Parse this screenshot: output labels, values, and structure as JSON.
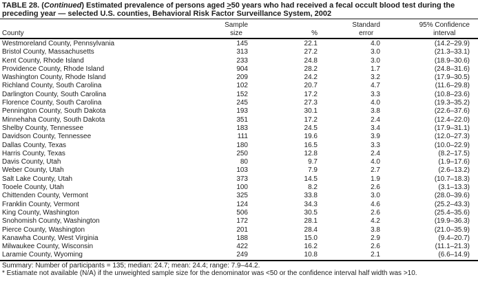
{
  "colors": {
    "background": "#ffffff",
    "text": "#1b1b1b",
    "rule": "#000000"
  },
  "title": {
    "part1": "TABLE 28. (",
    "continued": "Continued",
    "part2": ") Estimated prevalence of persons aged ",
    "geq": ">",
    "part3": "50 years who had received a fecal occult blood test during the preceding year — selected U.S. counties, Behavioral Risk Factor Surveillance System, 2002"
  },
  "table": {
    "headers": {
      "county": "County",
      "sample": [
        "Sample",
        "size"
      ],
      "percent": "%",
      "stderr": [
        "Standard",
        "error"
      ],
      "ci": [
        "95% Confidence",
        "interval"
      ]
    },
    "rows": [
      {
        "county": "Westmoreland County, Pennsylvania",
        "sample": "145",
        "pct": "22.1",
        "se": "4.0",
        "ci": "(14.2–29.9)"
      },
      {
        "county": "Bristol County, Massachusetts",
        "sample": "313",
        "pct": "27.2",
        "se": "3.0",
        "ci": "(21.3–33.1)"
      },
      {
        "county": "Kent County, Rhode Island",
        "sample": "233",
        "pct": "24.8",
        "se": "3.0",
        "ci": "(18.9–30.6)"
      },
      {
        "county": "Providence County, Rhode Island",
        "sample": "904",
        "pct": "28.2",
        "se": "1.7",
        "ci": "(24.8–31.6)"
      },
      {
        "county": "Washington County, Rhode Island",
        "sample": "209",
        "pct": "24.2",
        "se": "3.2",
        "ci": "(17.9–30.5)"
      },
      {
        "county": "Richland County, South Carolina",
        "sample": "102",
        "pct": "20.7",
        "se": "4.7",
        "ci": "(11.6–29.8)"
      },
      {
        "county": "Darlington County, South Carolina",
        "sample": "152",
        "pct": "17.2",
        "se": "3.3",
        "ci": "(10.8–23.6)"
      },
      {
        "county": "Florence County, South Carolina",
        "sample": "245",
        "pct": "27.3",
        "se": "4.0",
        "ci": "(19.3–35.2)"
      },
      {
        "county": "Pennington County, South Dakota",
        "sample": "193",
        "pct": "30.1",
        "se": "3.8",
        "ci": "(22.6–37.6)"
      },
      {
        "county": "Minnehaha County, South Dakota",
        "sample": "351",
        "pct": "17.2",
        "se": "2.4",
        "ci": "(12.4–22.0)"
      },
      {
        "county": "Shelby County, Tennessee",
        "sample": "183",
        "pct": "24.5",
        "se": "3.4",
        "ci": "(17.9–31.1)"
      },
      {
        "county": "Davidson County, Tennessee",
        "sample": "111",
        "pct": "19.6",
        "se": "3.9",
        "ci": "(12.0–27.3)"
      },
      {
        "county": "Dallas County, Texas",
        "sample": "180",
        "pct": "16.5",
        "se": "3.3",
        "ci": "(10.0–22.9)"
      },
      {
        "county": "Harris County, Texas",
        "sample": "250",
        "pct": "12.8",
        "se": "2.4",
        "ci": "(8.2–17.5)"
      },
      {
        "county": "Davis County, Utah",
        "sample": "80",
        "pct": "9.7",
        "se": "4.0",
        "ci": "(1.9–17.6)"
      },
      {
        "county": "Weber County, Utah",
        "sample": "103",
        "pct": "7.9",
        "se": "2.7",
        "ci": "(2.6–13.2)"
      },
      {
        "county": "Salt Lake County, Utah",
        "sample": "373",
        "pct": "14.5",
        "se": "1.9",
        "ci": "(10.7–18.3)"
      },
      {
        "county": "Tooele County, Utah",
        "sample": "100",
        "pct": "8.2",
        "se": "2.6",
        "ci": "(3.1–13.3)"
      },
      {
        "county": "Chittenden County, Vermont",
        "sample": "325",
        "pct": "33.8",
        "se": "3.0",
        "ci": "(28.0–39.6)"
      },
      {
        "county": "Franklin County, Vermont",
        "sample": "124",
        "pct": "34.3",
        "se": "4.6",
        "ci": "(25.2–43.3)"
      },
      {
        "county": "King County, Washington",
        "sample": "506",
        "pct": "30.5",
        "se": "2.6",
        "ci": "(25.4–35.6)"
      },
      {
        "county": "Snohomish County, Washington",
        "sample": "172",
        "pct": "28.1",
        "se": "4.2",
        "ci": "(19.9–36.3)"
      },
      {
        "county": "Pierce County, Washington",
        "sample": "201",
        "pct": "28.4",
        "se": "3.8",
        "ci": "(21.0–35.9)"
      },
      {
        "county": "Kanawha County, West Virginia",
        "sample": "188",
        "pct": "15.0",
        "se": "2.9",
        "ci": "(9.4–20.7)"
      },
      {
        "county": "Milwaukee County, Wisconsin",
        "sample": "422",
        "pct": "16.2",
        "se": "2.6",
        "ci": "(11.1–21.3)"
      },
      {
        "county": "Laramie County, Wyoming",
        "sample": "249",
        "pct": "10.8",
        "se": "2.1",
        "ci": "(6.6–14.9)"
      }
    ]
  },
  "footer": {
    "summary": "Summary: Number of participants = 135; median: 24.7; mean: 24.4; range: 7.9–44.2.",
    "footnote": "* Estiamate not available (N/A) if the unweighted sample size for the denominator was <50 or the confidence interval half width was >10."
  }
}
